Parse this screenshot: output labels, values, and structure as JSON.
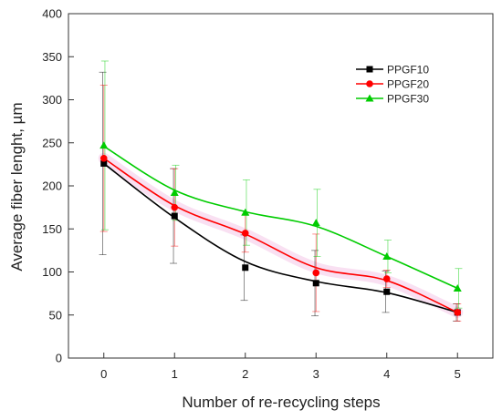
{
  "chart_data": {
    "type": "line",
    "title": "",
    "xlabel": "Number of re-recycling steps",
    "ylabel": "Average fiber lenght, µm",
    "x": [
      0,
      1,
      2,
      3,
      4,
      5
    ],
    "xlim": [
      -0.5,
      5.5
    ],
    "ylim": [
      0,
      400
    ],
    "xticks": [
      0,
      1,
      2,
      3,
      4,
      5
    ],
    "yticks": [
      0,
      50,
      100,
      150,
      200,
      250,
      300,
      350,
      400
    ],
    "grid": false,
    "legend_position": "top-right",
    "series": [
      {
        "name": "PPGF10",
        "color": "#000000",
        "marker": "square",
        "values": [
          226,
          165,
          105,
          87,
          77,
          53
        ],
        "smooth_fit": [
          226,
          163,
          112,
          89,
          76,
          53
        ],
        "error": [
          106,
          55,
          38,
          38,
          24,
          10
        ]
      },
      {
        "name": "PPGF20",
        "color": "#ff0000",
        "marker": "circle",
        "values": [
          232,
          175,
          145,
          99,
          92,
          53
        ],
        "smooth_fit": [
          232,
          177,
          144,
          105,
          90,
          53
        ],
        "error": [
          85,
          45,
          22,
          45,
          10,
          10
        ]
      },
      {
        "name": "PPGF30",
        "color": "#00cc00",
        "marker": "triangle",
        "values": [
          247,
          192,
          169,
          157,
          118,
          81
        ],
        "smooth_fit": [
          246,
          195,
          170,
          153,
          118,
          81
        ],
        "error": [
          98,
          32,
          38,
          39,
          19,
          23
        ]
      }
    ]
  }
}
